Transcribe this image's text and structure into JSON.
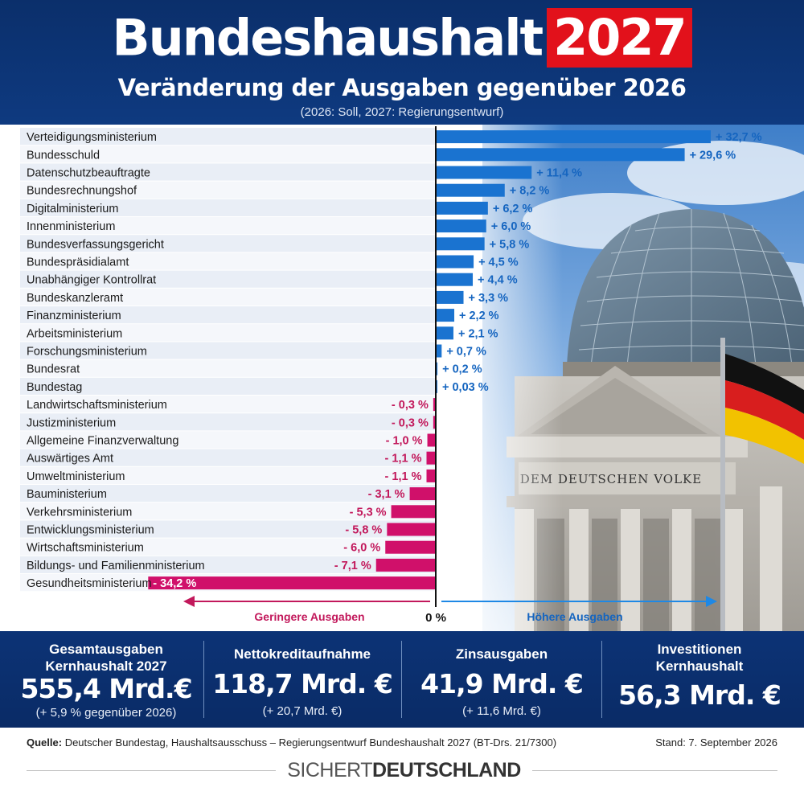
{
  "header": {
    "title_main": "Bundeshaushalt",
    "title_year": "2027",
    "subtitle": "Veränderung der Ausgaben gegenüber 2026",
    "note": "(2026: Soll, 2027: Regierungsentwurf)"
  },
  "chart_data": {
    "type": "bar",
    "orientation": "horizontal",
    "title": "Veränderung der Ausgaben gegenüber 2026",
    "unit": "%",
    "categories": [
      "Verteidigungsministerium",
      "Bundesschuld",
      "Datenschutzbeauftragte",
      "Bundesrechnungshof",
      "Digitalministerium",
      "Innenministerium",
      "Bundesverfassungsgericht",
      "Bundespräsidialamt",
      "Unabhängiger Kontrollrat",
      "Bundeskanzleramt",
      "Finanzministerium",
      "Arbeitsministerium",
      "Forschungsministerium",
      "Bundesrat",
      "Bundestag",
      "Landwirtschaftsministerium",
      "Justizministerium",
      "Allgemeine Finanzverwaltung",
      "Auswärtiges Amt",
      "Umweltministerium",
      "Bauministerium",
      "Verkehrsministerium",
      "Entwicklungsministerium",
      "Wirtschaftsministerium",
      "Bildungs- und Familienministerium",
      "Gesundheitsministerium"
    ],
    "values": [
      32.7,
      29.6,
      11.4,
      8.2,
      6.2,
      6.0,
      5.8,
      4.5,
      4.4,
      3.3,
      2.2,
      2.1,
      0.7,
      0.2,
      0.03,
      -0.3,
      -0.3,
      -1.0,
      -1.1,
      -1.1,
      -3.1,
      -5.3,
      -5.8,
      -6.0,
      -7.1,
      -34.2
    ],
    "value_labels": [
      "+ 32,7 %",
      "+ 29,6 %",
      "+ 11,4 %",
      "+ 8,2 %",
      "+ 6,2 %",
      "+ 6,0 %",
      "+ 5,8 %",
      "+ 4,5 %",
      "+ 4,4 %",
      "+ 3,3 %",
      "+ 2,2 %",
      "+ 2,1 %",
      "+ 0,7 %",
      "+ 0,2 %",
      "+ 0,03 %",
      "- 0,3 %",
      "- 0,3 %",
      "- 1,0 %",
      "- 1,1 %",
      "- 1,1 %",
      "- 3,1 %",
      "- 5,3 %",
      "- 5,8 %",
      "- 6,0 %",
      "- 7,1 %",
      "- 34,2 %"
    ],
    "xlim": [
      -34.2,
      32.7
    ],
    "zero_label": "0 %",
    "axis_left_label": "Geringere Ausgaben",
    "axis_right_label": "Höhere Ausgaben",
    "colors": {
      "positive": "#1a73d0",
      "negative": "#d0106a",
      "positive_label": "#1565c0",
      "negative_label": "#c2185b",
      "zero_line": "#111111"
    }
  },
  "photo_text": "DEM DEUTSCHEN VOLKE",
  "stats": [
    {
      "label_lines": [
        "Gesamtausgaben",
        "Kernhaushalt 2027"
      ],
      "value": "555,4 Mrd.€",
      "sub": "(+ 5,9 % gegenüber 2026)"
    },
    {
      "label_lines": [
        "Nettokreditaufnahme"
      ],
      "value": "118,7 Mrd. €",
      "sub": "(+ 20,7 Mrd. €)"
    },
    {
      "label_lines": [
        "Zinsausgaben"
      ],
      "value": "41,9 Mrd. €",
      "sub": "(+ 11,6 Mrd. €)"
    },
    {
      "label_lines": [
        "Investitionen",
        "Kernhaushalt"
      ],
      "value": "56,3 Mrd. €",
      "sub": ""
    }
  ],
  "footer": {
    "source_label": "Quelle:",
    "source_text": " Deutscher Bundestag, Haushaltsausschuss – Regierungsentwurf Bundeshaushalt 2027 (BT-Drs. 21/7300)",
    "stand": "Stand: 7. September 2026",
    "brand_part1": "SICHERT",
    "brand_part2": "DEUTSCHLAND"
  }
}
